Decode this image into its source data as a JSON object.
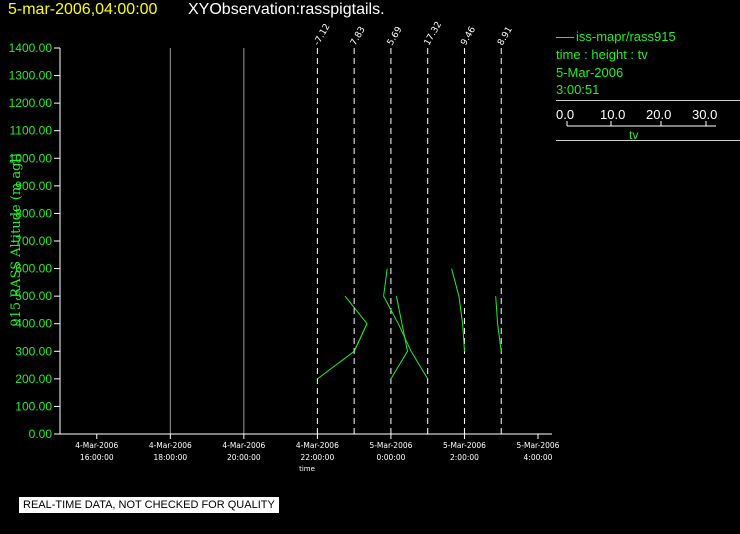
{
  "header": {
    "time": "5-mar-2006,04:00:00",
    "title": "XYObservation:rasspigtails."
  },
  "legend": {
    "series_label": "iss-mapr/rass915",
    "line1": "time : height : tv",
    "line2": "5-Mar-2006",
    "line3": "3:00:51",
    "colorbar": {
      "ticks": [
        "0.0",
        "10.0",
        "20.0",
        "30.0"
      ],
      "name": "tv"
    }
  },
  "notice": "REAL-TIME DATA, NOT CHECKED FOR QUALITY",
  "colors": {
    "background": "#000000",
    "series": "#22ee22",
    "time_text": "#ffff00",
    "title_text": "#ffffff"
  },
  "chart_data": {
    "type": "line",
    "ylabel": "915 RASS Altitude (m agl)",
    "xlabel": "time",
    "ylim": [
      0,
      1400
    ],
    "yticks": [
      "0.00",
      "100.00",
      "200.00",
      "300.00",
      "400.00",
      "500.00",
      "600.00",
      "700.00",
      "800.00",
      "900.00",
      "1000.00",
      "1100.00",
      "1200.00",
      "1300.00",
      "1400.00"
    ],
    "xlim_hours": [
      15,
      28
    ],
    "xticks": [
      {
        "t": 16,
        "date": "4-Mar-2006",
        "time": "16:00:00"
      },
      {
        "t": 18,
        "date": "4-Mar-2006",
        "time": "18:00:00"
      },
      {
        "t": 20,
        "date": "4-Mar-2006",
        "time": "20:00:00"
      },
      {
        "t": 22,
        "date": "4-Mar-2006",
        "time": "22:00:00"
      },
      {
        "t": 24,
        "date": "5-Mar-2006",
        "time": "0:00:00"
      },
      {
        "t": 26,
        "date": "5-Mar-2006",
        "time": "2:00:00"
      },
      {
        "t": 28,
        "date": "5-Mar-2006",
        "time": "4:00:00"
      }
    ],
    "grid_x": [
      18,
      20
    ],
    "pigtails": [
      {
        "t": 22,
        "label": "-7.12",
        "points": [
          [
            22.0,
            200
          ],
          [
            23.0,
            300
          ],
          [
            23.35,
            400
          ],
          [
            22.75,
            500
          ]
        ]
      },
      {
        "t": 23,
        "label": "7.83",
        "points": [
          [
            23.0,
            300
          ],
          [
            23.35,
            400
          ]
        ]
      },
      {
        "t": 24,
        "label": "5.69",
        "points": [
          [
            24.0,
            200
          ],
          [
            24.45,
            300
          ],
          [
            24.15,
            500
          ]
        ]
      },
      {
        "t": 25,
        "label": "17.32",
        "points": [
          [
            25.0,
            200
          ],
          [
            24.55,
            300
          ],
          [
            24.2,
            400
          ],
          [
            23.8,
            500
          ],
          [
            23.9,
            600
          ]
        ]
      },
      {
        "t": 26,
        "label": "9.46",
        "points": [
          [
            26.0,
            300
          ],
          [
            25.95,
            400
          ],
          [
            25.85,
            500
          ],
          [
            25.65,
            600
          ]
        ]
      },
      {
        "t": 27,
        "label": "8.91",
        "points": [
          [
            27.0,
            300
          ],
          [
            26.9,
            400
          ],
          [
            26.85,
            500
          ]
        ]
      }
    ]
  }
}
